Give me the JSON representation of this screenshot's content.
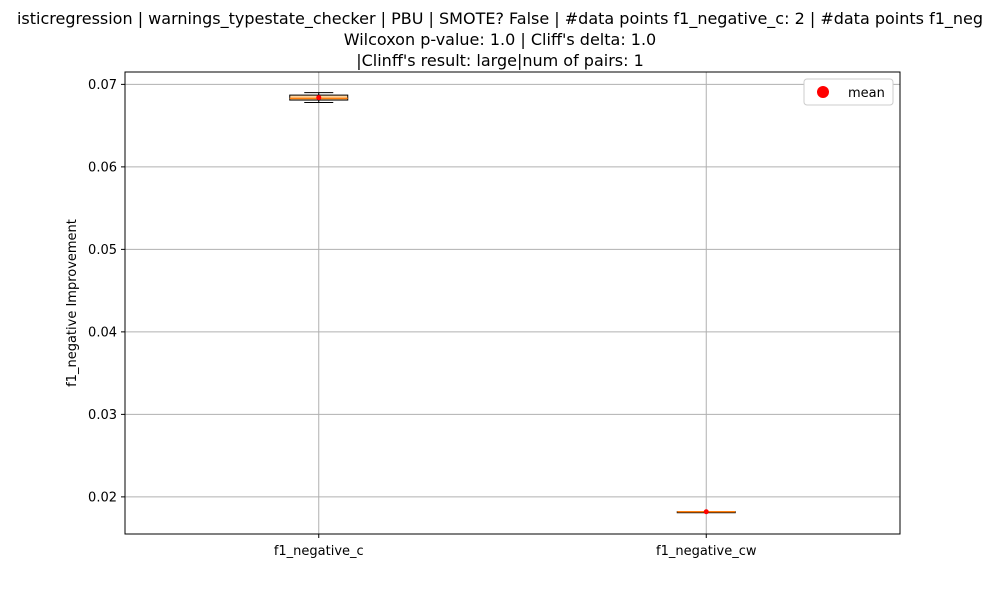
{
  "title": {
    "line1": "isticregression | warnings_typestate_checker | PBU | SMOTE? False | #data points f1_negative_c: 2 | #data points f1_neg",
    "line2": "Wilcoxon p-value: 1.0 | Cliff's delta: 1.0",
    "line3": "|Clinff's result: large|num of pairs: 1"
  },
  "chart_data": {
    "type": "box",
    "categories": [
      "f1_negative_c",
      "f1_negative_cw"
    ],
    "ylabel": "f1_negative Improvement",
    "xlabel": "",
    "ylim": [
      0.0155,
      0.0715
    ],
    "yticks": [
      0.02,
      0.03,
      0.04,
      0.05,
      0.06,
      0.07
    ],
    "ytick_labels": [
      "0.02",
      "0.03",
      "0.04",
      "0.05",
      "0.06",
      "0.07"
    ],
    "grid": true,
    "legend": {
      "position": "top-right",
      "entries": [
        "mean"
      ]
    },
    "boxes": [
      {
        "category": "f1_negative_c",
        "whisker_low": 0.0678,
        "q1": 0.0681,
        "median": 0.0683,
        "q3": 0.0687,
        "whisker_high": 0.069,
        "mean": 0.0684
      },
      {
        "category": "f1_negative_cw",
        "whisker_low": 0.0182,
        "q1": 0.0182,
        "median": 0.0182,
        "q3": 0.0182,
        "whisker_high": 0.0182,
        "mean": 0.0182
      }
    ],
    "colors": {
      "box_fill": "#fdd49e",
      "median": "#ff7f0e",
      "mean": "#ff0000",
      "grid": "#b0b0b0"
    }
  }
}
